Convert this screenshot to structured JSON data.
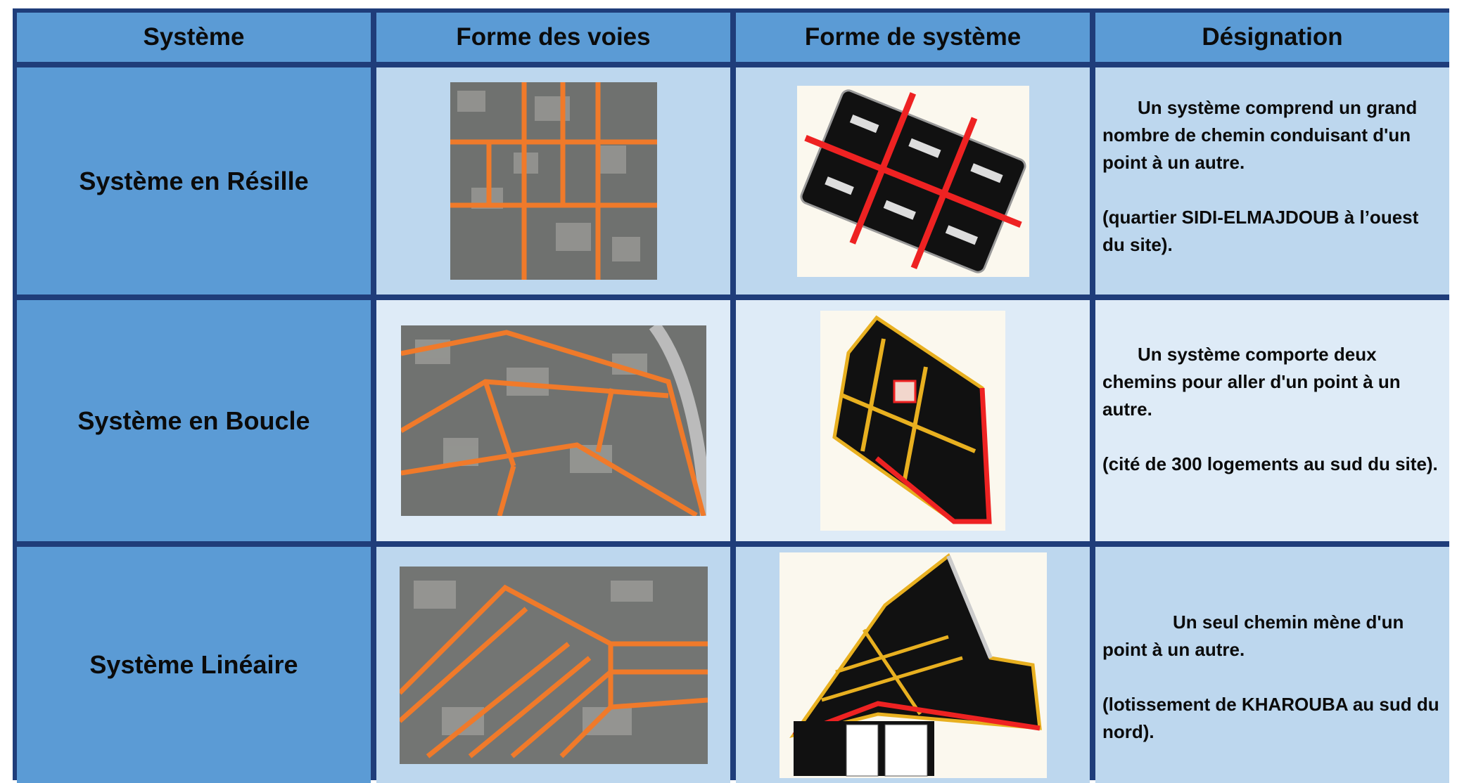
{
  "header": {
    "columns": [
      "Système",
      "Forme des voies",
      "Forme de système",
      "Désignation"
    ]
  },
  "rows": [
    {
      "systeme": "Système en Résille",
      "description": [
        "Un système comprend un grand nombre de chemin conduisant d'un point à un autre.",
        "(quartier SIDI-ELMAJDOUB à l’ouest du site)."
      ]
    },
    {
      "systeme": "Système en Boucle",
      "description": [
        "Un système comporte deux chemins pour aller d'un point à un autre.",
        "(cité de 300 logements au sud du site)."
      ]
    },
    {
      "systeme": "Système Linéaire",
      "description": [
        "Un seul chemin mène d'un point à un autre.",
        "(lotissement de KHAROUBA au sud du nord)."
      ]
    }
  ]
}
